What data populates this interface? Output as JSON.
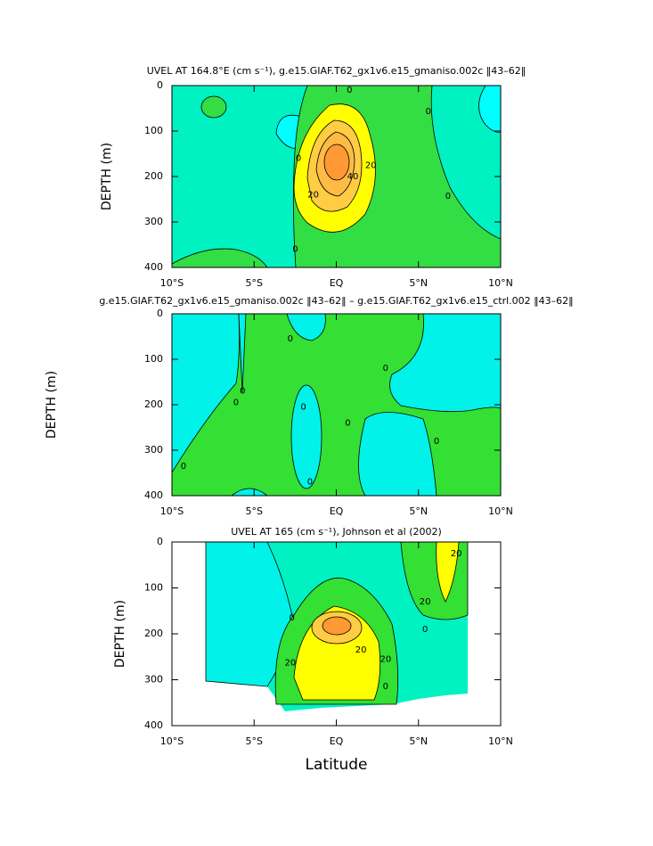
{
  "chart_data": [
    {
      "type": "contour",
      "title": "UVEL AT 164.8°E (cm s⁻¹), g.e15.GIAF.T62_gx1v6.e15_gmaniso.002c ‖43–62‖",
      "ylabel": "DEPTH (m)",
      "xlim": [
        -10,
        10
      ],
      "ylim": [
        400,
        0
      ],
      "xticks": [
        {
          "value": -10,
          "label": "10°S"
        },
        {
          "value": -5,
          "label": "5°S"
        },
        {
          "value": 0,
          "label": "EQ"
        },
        {
          "value": 5,
          "label": "5°N"
        },
        {
          "value": 10,
          "label": "10°N"
        }
      ],
      "yticks": [
        0,
        100,
        200,
        300,
        400
      ],
      "contour_labels": [
        {
          "value": 0,
          "x": 0.8,
          "y": 10
        },
        {
          "value": 0,
          "x": 5.6,
          "y": 57
        },
        {
          "value": 0,
          "x": -2.3,
          "y": 160
        },
        {
          "value": 20,
          "x": -1.4,
          "y": 240
        },
        {
          "value": 40,
          "x": 1,
          "y": 200
        },
        {
          "value": 20,
          "x": 2.1,
          "y": 175
        },
        {
          "value": 0,
          "x": 6.8,
          "y": 243
        },
        {
          "value": 0,
          "x": -2.5,
          "y": 360
        }
      ]
    },
    {
      "type": "contour",
      "title": "g.e15.GIAF.T62_gx1v6.e15_gmaniso.002c ‖43–62‖ – g.e15.GIAF.T62_gx1v6.e15_ctrl.002 ‖43–62‖",
      "ylabel": "DEPTH (m)",
      "xlim": [
        -10,
        10
      ],
      "ylim": [
        400,
        0
      ],
      "xticks": [
        {
          "value": -10,
          "label": "10°S"
        },
        {
          "value": -5,
          "label": "5°S"
        },
        {
          "value": 0,
          "label": "EQ"
        },
        {
          "value": 5,
          "label": "5°N"
        },
        {
          "value": 10,
          "label": "10°N"
        }
      ],
      "yticks": [
        0,
        100,
        200,
        300,
        400
      ],
      "contour_labels": [
        {
          "value": 0,
          "x": -2.8,
          "y": 55
        },
        {
          "value": 0,
          "x": -5.7,
          "y": 170
        },
        {
          "value": 0,
          "x": -6.1,
          "y": 195
        },
        {
          "value": 0,
          "x": -2,
          "y": 205
        },
        {
          "value": 0,
          "x": 0.7,
          "y": 240
        },
        {
          "value": 0,
          "x": 3,
          "y": 120
        },
        {
          "value": 0,
          "x": 6.1,
          "y": 280
        },
        {
          "value": 0,
          "x": -9.3,
          "y": 335
        },
        {
          "value": 0,
          "x": -1.6,
          "y": 370
        }
      ]
    },
    {
      "type": "contour",
      "title": "UVEL AT 165 (cm s⁻¹), Johnson et al (2002)",
      "ylabel": "DEPTH (m)",
      "xlabel": "Latitude",
      "xlim": [
        -10,
        10
      ],
      "ylim": [
        400,
        0
      ],
      "xticks": [
        {
          "value": -10,
          "label": "10°S"
        },
        {
          "value": -5,
          "label": "5°S"
        },
        {
          "value": 0,
          "label": "EQ"
        },
        {
          "value": 5,
          "label": "5°N"
        },
        {
          "value": 10,
          "label": "10°N"
        }
      ],
      "yticks": [
        0,
        100,
        200,
        300,
        400
      ],
      "contour_labels": [
        {
          "value": 0,
          "x": -2.7,
          "y": 165
        },
        {
          "value": 0,
          "x": 5.4,
          "y": 190
        },
        {
          "value": 20,
          "x": -2.8,
          "y": 263
        },
        {
          "value": 20,
          "x": 1.5,
          "y": 235
        },
        {
          "value": 20,
          "x": 3,
          "y": 255
        },
        {
          "value": 0,
          "x": 3,
          "y": 315
        },
        {
          "value": 20,
          "x": 5.4,
          "y": 130
        },
        {
          "value": 20,
          "x": 7.3,
          "y": 25
        }
      ]
    }
  ]
}
